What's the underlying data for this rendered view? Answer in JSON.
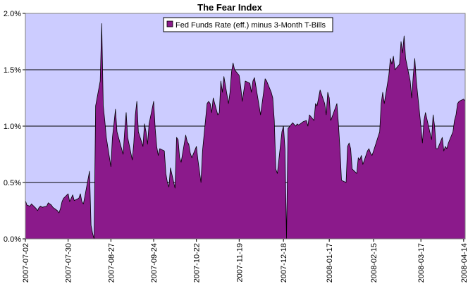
{
  "chart_data": {
    "type": "area",
    "title": "The Fear Index",
    "xlabel": "",
    "ylabel": "",
    "ylim": [
      0,
      2.0
    ],
    "yticks": [
      "0.0%",
      "0.5%",
      "1.0%",
      "1.5%",
      "2.0%"
    ],
    "ytick_values": [
      0,
      0.5,
      1.0,
      1.5,
      2.0
    ],
    "xticks": [
      "2007-07-02",
      "2007-07-30",
      "2007-08-27",
      "2007-09-24",
      "2007-10-22",
      "2007-11-19",
      "2007-12-18",
      "2008-01-17",
      "2008-02-15",
      "2008-03-17",
      "2008-04-14"
    ],
    "grid": true,
    "legend_position": "top-center",
    "plot_background": "#ccccff",
    "series": [
      {
        "name": "Fed Funds Rate (eff.) minus 3-Month T-Bills",
        "color": "#8b1a8b",
        "points": [
          [
            "2007-07-02",
            0.34
          ],
          [
            "2007-07-03",
            0.3
          ],
          [
            "2007-07-05",
            0.29
          ],
          [
            "2007-07-06",
            0.31
          ],
          [
            "2007-07-09",
            0.27
          ],
          [
            "2007-07-10",
            0.25
          ],
          [
            "2007-07-11",
            0.28
          ],
          [
            "2007-07-12",
            0.29
          ],
          [
            "2007-07-13",
            0.28
          ],
          [
            "2007-07-16",
            0.29
          ],
          [
            "2007-07-17",
            0.32
          ],
          [
            "2007-07-18",
            0.31
          ],
          [
            "2007-07-19",
            0.3
          ],
          [
            "2007-07-20",
            0.28
          ],
          [
            "2007-07-23",
            0.25
          ],
          [
            "2007-07-24",
            0.23
          ],
          [
            "2007-07-25",
            0.27
          ],
          [
            "2007-07-26",
            0.33
          ],
          [
            "2007-07-27",
            0.36
          ],
          [
            "2007-07-30",
            0.4
          ],
          [
            "2007-07-31",
            0.33
          ],
          [
            "2007-08-01",
            0.36
          ],
          [
            "2007-08-02",
            0.39
          ],
          [
            "2007-08-03",
            0.34
          ],
          [
            "2007-08-06",
            0.36
          ],
          [
            "2007-08-07",
            0.4
          ],
          [
            "2007-08-08",
            0.33
          ],
          [
            "2007-08-09",
            0.31
          ],
          [
            "2007-08-10",
            0.38
          ],
          [
            "2007-08-13",
            0.6
          ],
          [
            "2007-08-14",
            0.12
          ],
          [
            "2007-08-15",
            0.05
          ],
          [
            "2007-08-16",
            0.0
          ],
          [
            "2007-08-17",
            1.18
          ],
          [
            "2007-08-20",
            1.4
          ],
          [
            "2007-08-21",
            1.91
          ],
          [
            "2007-08-22",
            1.18
          ],
          [
            "2007-08-23",
            1.05
          ],
          [
            "2007-08-24",
            0.9
          ],
          [
            "2007-08-27",
            0.64
          ],
          [
            "2007-08-28",
            0.9
          ],
          [
            "2007-08-29",
            1.02
          ],
          [
            "2007-08-30",
            1.15
          ],
          [
            "2007-08-31",
            0.95
          ],
          [
            "2007-09-04",
            0.75
          ],
          [
            "2007-09-05",
            0.95
          ],
          [
            "2007-09-06",
            1.12
          ],
          [
            "2007-09-07",
            0.9
          ],
          [
            "2007-09-10",
            0.7
          ],
          [
            "2007-09-11",
            0.85
          ],
          [
            "2007-09-12",
            1.1
          ],
          [
            "2007-09-13",
            1.22
          ],
          [
            "2007-09-14",
            0.95
          ],
          [
            "2007-09-17",
            0.82
          ],
          [
            "2007-09-18",
            1.02
          ],
          [
            "2007-09-19",
            0.95
          ],
          [
            "2007-09-20",
            0.84
          ],
          [
            "2007-09-21",
            1.02
          ],
          [
            "2007-09-24",
            1.22
          ],
          [
            "2007-09-25",
            0.98
          ],
          [
            "2007-09-26",
            0.82
          ],
          [
            "2007-09-27",
            0.74
          ],
          [
            "2007-09-28",
            0.8
          ],
          [
            "2007-10-01",
            0.78
          ],
          [
            "2007-10-02",
            0.58
          ],
          [
            "2007-10-03",
            0.5
          ],
          [
            "2007-10-04",
            0.46
          ],
          [
            "2007-10-05",
            0.63
          ],
          [
            "2007-10-08",
            0.45
          ],
          [
            "2007-10-09",
            0.9
          ],
          [
            "2007-10-10",
            0.88
          ],
          [
            "2007-10-11",
            0.72
          ],
          [
            "2007-10-12",
            0.68
          ],
          [
            "2007-10-15",
            0.92
          ],
          [
            "2007-10-16",
            0.86
          ],
          [
            "2007-10-17",
            0.84
          ],
          [
            "2007-10-18",
            0.76
          ],
          [
            "2007-10-19",
            0.72
          ],
          [
            "2007-10-22",
            0.82
          ],
          [
            "2007-10-23",
            0.7
          ],
          [
            "2007-10-24",
            0.6
          ],
          [
            "2007-10-25",
            0.5
          ],
          [
            "2007-10-26",
            0.78
          ],
          [
            "2007-10-29",
            1.2
          ],
          [
            "2007-10-30",
            1.22
          ],
          [
            "2007-10-31",
            1.2
          ],
          [
            "2007-11-01",
            1.12
          ],
          [
            "2007-11-02",
            1.25
          ],
          [
            "2007-11-05",
            1.1
          ],
          [
            "2007-11-06",
            1.12
          ],
          [
            "2007-11-07",
            1.4
          ],
          [
            "2007-11-08",
            1.3
          ],
          [
            "2007-11-09",
            1.44
          ],
          [
            "2007-11-12",
            1.2
          ],
          [
            "2007-11-13",
            1.3
          ],
          [
            "2007-11-14",
            1.48
          ],
          [
            "2007-11-15",
            1.56
          ],
          [
            "2007-11-16",
            1.5
          ],
          [
            "2007-11-19",
            1.45
          ],
          [
            "2007-11-20",
            1.35
          ],
          [
            "2007-11-21",
            1.22
          ],
          [
            "2007-11-23",
            1.4
          ],
          [
            "2007-11-26",
            1.38
          ],
          [
            "2007-11-27",
            1.3
          ],
          [
            "2007-11-28",
            1.4
          ],
          [
            "2007-11-29",
            1.43
          ],
          [
            "2007-11-30",
            1.35
          ],
          [
            "2007-12-03",
            1.1
          ],
          [
            "2007-12-04",
            1.2
          ],
          [
            "2007-12-05",
            1.3
          ],
          [
            "2007-12-06",
            1.42
          ],
          [
            "2007-12-07",
            1.4
          ],
          [
            "2007-12-10",
            1.3
          ],
          [
            "2007-12-11",
            1.25
          ],
          [
            "2007-12-12",
            1.05
          ],
          [
            "2007-12-13",
            0.62
          ],
          [
            "2007-12-14",
            0.58
          ],
          [
            "2007-12-17",
            0.95
          ],
          [
            "2007-12-18",
            1.0
          ],
          [
            "2007-12-19",
            0.8
          ],
          [
            "2007-12-20",
            0.0
          ],
          [
            "2007-12-21",
            0.98
          ],
          [
            "2007-12-24",
            1.03
          ],
          [
            "2007-12-26",
            1.0
          ],
          [
            "2007-12-27",
            1.02
          ],
          [
            "2007-12-28",
            1.01
          ],
          [
            "2007-12-31",
            1.04
          ],
          [
            "2008-01-02",
            1.05
          ],
          [
            "2008-01-03",
            1.0
          ],
          [
            "2008-01-04",
            1.1
          ],
          [
            "2008-01-07",
            1.05
          ],
          [
            "2008-01-08",
            1.2
          ],
          [
            "2008-01-09",
            1.18
          ],
          [
            "2008-01-10",
            1.25
          ],
          [
            "2008-01-11",
            1.32
          ],
          [
            "2008-01-14",
            1.2
          ],
          [
            "2008-01-15",
            1.1
          ],
          [
            "2008-01-16",
            1.3
          ],
          [
            "2008-01-17",
            1.25
          ],
          [
            "2008-01-18",
            1.05
          ],
          [
            "2008-01-22",
            1.2
          ],
          [
            "2008-01-23",
            1.02
          ],
          [
            "2008-01-24",
            0.8
          ],
          [
            "2008-01-25",
            0.52
          ],
          [
            "2008-01-28",
            0.5
          ],
          [
            "2008-01-29",
            0.82
          ],
          [
            "2008-01-30",
            0.85
          ],
          [
            "2008-01-31",
            0.8
          ],
          [
            "2008-02-01",
            0.62
          ],
          [
            "2008-02-04",
            0.58
          ],
          [
            "2008-02-05",
            0.72
          ],
          [
            "2008-02-06",
            0.7
          ],
          [
            "2008-02-07",
            0.74
          ],
          [
            "2008-02-08",
            0.66
          ],
          [
            "2008-02-11",
            0.78
          ],
          [
            "2008-02-12",
            0.8
          ],
          [
            "2008-02-13",
            0.76
          ],
          [
            "2008-02-14",
            0.74
          ],
          [
            "2008-02-15",
            0.78
          ],
          [
            "2008-02-19",
            0.95
          ],
          [
            "2008-02-20",
            1.2
          ],
          [
            "2008-02-21",
            1.3
          ],
          [
            "2008-02-22",
            1.2
          ],
          [
            "2008-02-25",
            1.45
          ],
          [
            "2008-02-26",
            1.6
          ],
          [
            "2008-02-27",
            1.55
          ],
          [
            "2008-02-28",
            1.62
          ],
          [
            "2008-02-29",
            1.5
          ],
          [
            "2008-03-03",
            1.55
          ],
          [
            "2008-03-04",
            1.75
          ],
          [
            "2008-03-05",
            1.65
          ],
          [
            "2008-03-06",
            1.8
          ],
          [
            "2008-03-07",
            1.6
          ],
          [
            "2008-03-10",
            1.4
          ],
          [
            "2008-03-11",
            1.25
          ],
          [
            "2008-03-12",
            1.45
          ],
          [
            "2008-03-13",
            1.6
          ],
          [
            "2008-03-14",
            1.4
          ],
          [
            "2008-03-17",
            1.0
          ],
          [
            "2008-03-18",
            0.85
          ],
          [
            "2008-03-19",
            1.05
          ],
          [
            "2008-03-20",
            1.12
          ],
          [
            "2008-03-24",
            0.88
          ],
          [
            "2008-03-25",
            1.1
          ],
          [
            "2008-03-26",
            1.0
          ],
          [
            "2008-03-27",
            0.8
          ],
          [
            "2008-03-28",
            0.8
          ],
          [
            "2008-03-31",
            0.9
          ],
          [
            "2008-04-01",
            0.78
          ],
          [
            "2008-04-02",
            0.82
          ],
          [
            "2008-04-03",
            0.8
          ],
          [
            "2008-04-04",
            0.85
          ],
          [
            "2008-04-07",
            0.95
          ],
          [
            "2008-04-08",
            1.05
          ],
          [
            "2008-04-09",
            1.1
          ],
          [
            "2008-04-10",
            1.2
          ],
          [
            "2008-04-11",
            1.22
          ],
          [
            "2008-04-14",
            1.24
          ],
          [
            "2008-04-15",
            1.22
          ]
        ]
      }
    ]
  }
}
